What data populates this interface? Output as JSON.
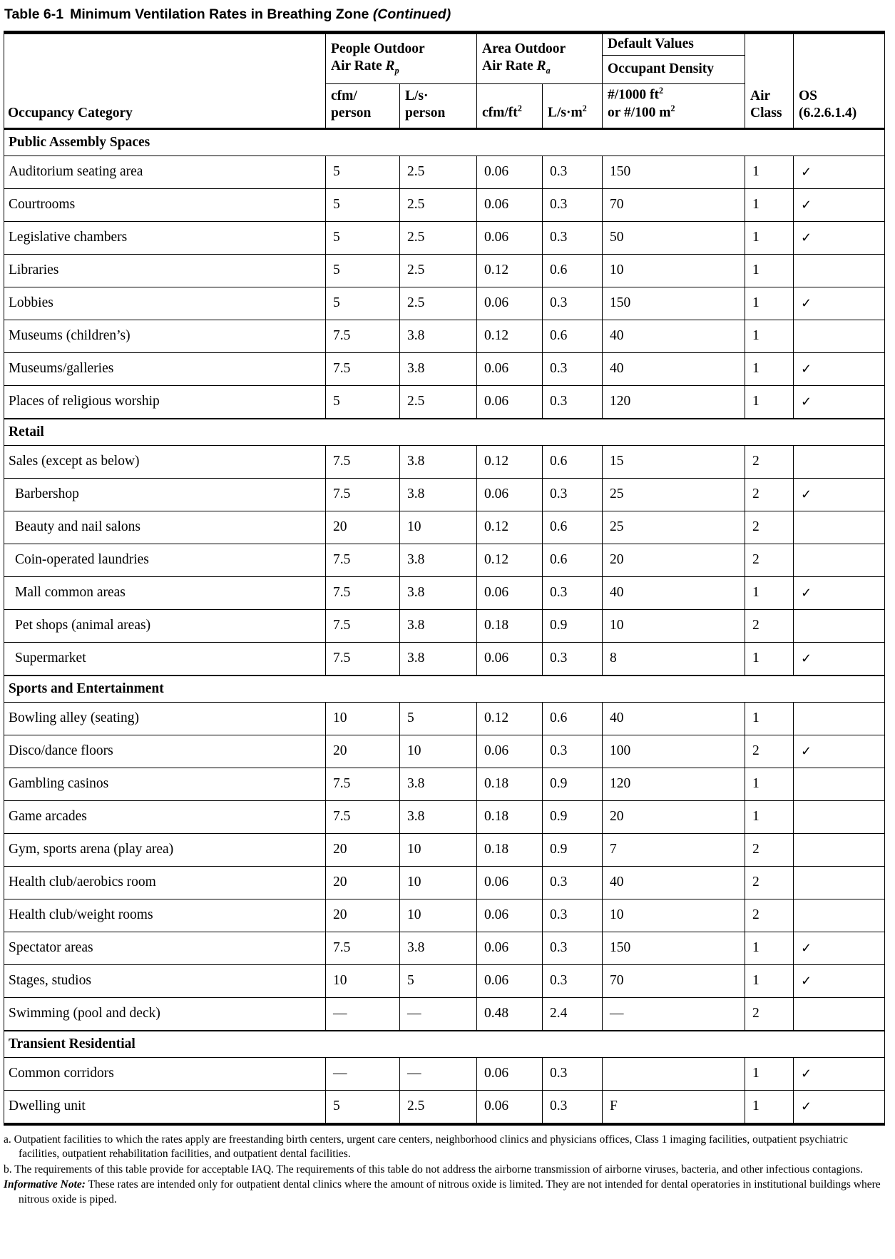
{
  "colors": {
    "text": "#000000",
    "background": "#ffffff",
    "border": "#000000"
  },
  "title": {
    "number": "Table 6-1",
    "text": "Minimum Ventilation Rates in Breathing Zone",
    "continued": "(Continued)"
  },
  "header": {
    "occupancy": "Occupancy Category",
    "people": {
      "line1": "People Outdoor",
      "line2": "Air Rate",
      "symbol": "R",
      "sub": "p"
    },
    "area": {
      "line1": "Area Outdoor",
      "line2": "Air Rate",
      "symbol": "R",
      "sub": "a"
    },
    "default_values": "Default Values",
    "occupant_density": "Occupant Density",
    "cfm_person": {
      "line1": "cfm/",
      "line2": "person"
    },
    "ls_person": {
      "line1": "L/s·",
      "line2": "person"
    },
    "cfm_ft2": {
      "base": "cfm/ft",
      "sup": "2"
    },
    "ls_m2": {
      "base": "L/s·m",
      "sup": "2"
    },
    "density": {
      "line1_base": "#/1000 ft",
      "line1_sup": "2",
      "line2_base": "or #/100 m",
      "line2_sup": "2"
    },
    "air_class": {
      "line1": "Air",
      "line2": "Class"
    },
    "os": {
      "line1": "OS",
      "line2": "(6.2.6.1.4)"
    }
  },
  "table": {
    "sections": [
      {
        "title": "Public Assembly Spaces",
        "rows": [
          {
            "category": "Auditorium seating area",
            "indent": false,
            "cfm_person": "5",
            "ls_person": "2.5",
            "cfm_ft2": "0.06",
            "ls_m2": "0.3",
            "density": "150",
            "air_class": "1",
            "os": "✓"
          },
          {
            "category": "Courtrooms",
            "indent": false,
            "cfm_person": "5",
            "ls_person": "2.5",
            "cfm_ft2": "0.06",
            "ls_m2": "0.3",
            "density": "70",
            "air_class": "1",
            "os": "✓"
          },
          {
            "category": "Legislative chambers",
            "indent": false,
            "cfm_person": "5",
            "ls_person": "2.5",
            "cfm_ft2": "0.06",
            "ls_m2": "0.3",
            "density": "50",
            "air_class": "1",
            "os": "✓"
          },
          {
            "category": "Libraries",
            "indent": false,
            "cfm_person": "5",
            "ls_person": "2.5",
            "cfm_ft2": "0.12",
            "ls_m2": "0.6",
            "density": "10",
            "air_class": "1",
            "os": ""
          },
          {
            "category": "Lobbies",
            "indent": false,
            "cfm_person": "5",
            "ls_person": "2.5",
            "cfm_ft2": "0.06",
            "ls_m2": "0.3",
            "density": "150",
            "air_class": "1",
            "os": "✓"
          },
          {
            "category": "Museums (children’s)",
            "indent": false,
            "cfm_person": "7.5",
            "ls_person": "3.8",
            "cfm_ft2": "0.12",
            "ls_m2": "0.6",
            "density": "40",
            "air_class": "1",
            "os": ""
          },
          {
            "category": "Museums/galleries",
            "indent": false,
            "cfm_person": "7.5",
            "ls_person": "3.8",
            "cfm_ft2": "0.06",
            "ls_m2": "0.3",
            "density": "40",
            "air_class": "1",
            "os": "✓"
          },
          {
            "category": "Places of religious worship",
            "indent": false,
            "cfm_person": "5",
            "ls_person": "2.5",
            "cfm_ft2": "0.06",
            "ls_m2": "0.3",
            "density": "120",
            "air_class": "1",
            "os": "✓"
          }
        ]
      },
      {
        "title": "Retail",
        "rows": [
          {
            "category": "Sales (except as below)",
            "indent": false,
            "cfm_person": "7.5",
            "ls_person": "3.8",
            "cfm_ft2": "0.12",
            "ls_m2": "0.6",
            "density": "15",
            "air_class": "2",
            "os": ""
          },
          {
            "category": "Barbershop",
            "indent": true,
            "cfm_person": "7.5",
            "ls_person": "3.8",
            "cfm_ft2": "0.06",
            "ls_m2": "0.3",
            "density": "25",
            "air_class": "2",
            "os": "✓"
          },
          {
            "category": "Beauty and nail salons",
            "indent": true,
            "cfm_person": "20",
            "ls_person": "10",
            "cfm_ft2": "0.12",
            "ls_m2": "0.6",
            "density": "25",
            "air_class": "2",
            "os": ""
          },
          {
            "category": "Coin-operated laundries",
            "indent": true,
            "cfm_person": "7.5",
            "ls_person": "3.8",
            "cfm_ft2": "0.12",
            "ls_m2": "0.6",
            "density": "20",
            "air_class": "2",
            "os": ""
          },
          {
            "category": "Mall common areas",
            "indent": true,
            "cfm_person": "7.5",
            "ls_person": "3.8",
            "cfm_ft2": "0.06",
            "ls_m2": "0.3",
            "density": "40",
            "air_class": "1",
            "os": "✓"
          },
          {
            "category": "Pet shops (animal areas)",
            "indent": true,
            "cfm_person": "7.5",
            "ls_person": "3.8",
            "cfm_ft2": "0.18",
            "ls_m2": "0.9",
            "density": "10",
            "air_class": "2",
            "os": ""
          },
          {
            "category": "Supermarket",
            "indent": true,
            "cfm_person": "7.5",
            "ls_person": "3.8",
            "cfm_ft2": "0.06",
            "ls_m2": "0.3",
            "density": "8",
            "air_class": "1",
            "os": "✓"
          }
        ]
      },
      {
        "title": "Sports and Entertainment",
        "rows": [
          {
            "category": "Bowling alley (seating)",
            "indent": false,
            "cfm_person": "10",
            "ls_person": "5",
            "cfm_ft2": "0.12",
            "ls_m2": "0.6",
            "density": "40",
            "air_class": "1",
            "os": ""
          },
          {
            "category": "Disco/dance floors",
            "indent": false,
            "cfm_person": "20",
            "ls_person": "10",
            "cfm_ft2": "0.06",
            "ls_m2": "0.3",
            "density": "100",
            "air_class": "2",
            "os": "✓"
          },
          {
            "category": "Gambling casinos",
            "indent": false,
            "cfm_person": "7.5",
            "ls_person": "3.8",
            "cfm_ft2": "0.18",
            "ls_m2": "0.9",
            "density": "120",
            "air_class": "1",
            "os": ""
          },
          {
            "category": "Game arcades",
            "indent": false,
            "cfm_person": "7.5",
            "ls_person": "3.8",
            "cfm_ft2": "0.18",
            "ls_m2": "0.9",
            "density": "20",
            "air_class": "1",
            "os": ""
          },
          {
            "category": "Gym, sports arena (play area)",
            "indent": false,
            "cfm_person": "20",
            "ls_person": "10",
            "cfm_ft2": "0.18",
            "ls_m2": "0.9",
            "density": "7",
            "air_class": "2",
            "os": ""
          },
          {
            "category": "Health club/aerobics room",
            "indent": false,
            "cfm_person": "20",
            "ls_person": "10",
            "cfm_ft2": "0.06",
            "ls_m2": "0.3",
            "density": "40",
            "air_class": "2",
            "os": ""
          },
          {
            "category": "Health club/weight rooms",
            "indent": false,
            "cfm_person": "20",
            "ls_person": "10",
            "cfm_ft2": "0.06",
            "ls_m2": "0.3",
            "density": "10",
            "air_class": "2",
            "os": ""
          },
          {
            "category": "Spectator areas",
            "indent": false,
            "cfm_person": "7.5",
            "ls_person": "3.8",
            "cfm_ft2": "0.06",
            "ls_m2": "0.3",
            "density": "150",
            "air_class": "1",
            "os": "✓"
          },
          {
            "category": "Stages, studios",
            "indent": false,
            "cfm_person": "10",
            "ls_person": "5",
            "cfm_ft2": "0.06",
            "ls_m2": "0.3",
            "density": "70",
            "air_class": "1",
            "os": "✓"
          },
          {
            "category": "Swimming (pool and deck)",
            "indent": false,
            "cfm_person": "—",
            "ls_person": "—",
            "cfm_ft2": "0.48",
            "ls_m2": "2.4",
            "density": "—",
            "air_class": "2",
            "os": ""
          }
        ]
      },
      {
        "title": "Transient Residential",
        "rows": [
          {
            "category": "Common corridors",
            "indent": false,
            "cfm_person": "—",
            "ls_person": "—",
            "cfm_ft2": "0.06",
            "ls_m2": "0.3",
            "density": "",
            "air_class": "1",
            "os": "✓"
          },
          {
            "category": "Dwelling unit",
            "indent": false,
            "cfm_person": "5",
            "ls_person": "2.5",
            "cfm_ft2": "0.06",
            "ls_m2": "0.3",
            "density": "F",
            "air_class": "1",
            "os": "✓"
          }
        ]
      }
    ]
  },
  "footnotes": [
    {
      "marker": "a.",
      "text": "Outpatient facilities to which the rates apply are freestanding birth centers, urgent care centers, neighborhood clinics and physicians offices, Class 1 imaging facilities, outpatient psychiatric facilities, outpatient rehabilitation facilities, and outpatient dental facilities."
    },
    {
      "marker": "b.",
      "text": "The requirements of this table provide for acceptable IAQ. The requirements of this table do not address the airborne transmission of airborne viruses, bacteria, and other infectious contagions."
    }
  ],
  "informative_note": {
    "label": "Informative Note:",
    "text": "These rates are intended only for outpatient dental clinics where the amount of nitrous oxide is limited. They are not intended for dental operatories in institutional buildings where nitrous oxide is piped."
  }
}
